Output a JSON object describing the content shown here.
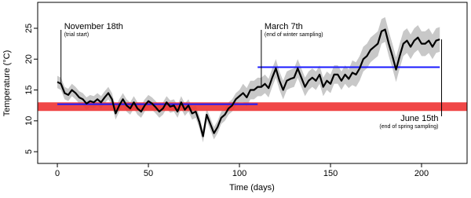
{
  "chart_data": {
    "type": "line",
    "xlabel": "Time (days)",
    "ylabel": "Temperature (°C)",
    "xlim": [
      -10.8,
      225
    ],
    "ylim": [
      3.1,
      29.2
    ],
    "xticks": [
      0,
      50,
      100,
      150,
      200
    ],
    "yticks": [
      5,
      10,
      15,
      20,
      25
    ],
    "x": [
      0,
      2,
      4,
      6,
      8,
      10,
      12,
      14,
      16,
      18,
      20,
      22,
      24,
      26,
      28,
      30,
      32,
      34,
      36,
      38,
      40,
      42,
      44,
      46,
      48,
      50,
      52,
      54,
      56,
      58,
      60,
      62,
      64,
      66,
      68,
      70,
      72,
      74,
      76,
      78,
      80,
      82,
      84,
      86,
      88,
      90,
      92,
      94,
      96,
      98,
      100,
      102,
      104,
      106,
      108,
      110,
      112,
      114,
      116,
      118,
      120,
      122,
      124,
      126,
      128,
      130,
      132,
      134,
      136,
      138,
      140,
      142,
      144,
      146,
      148,
      150,
      152,
      154,
      156,
      158,
      160,
      162,
      164,
      166,
      168,
      170,
      172,
      174,
      176,
      178,
      180,
      182,
      184,
      186,
      188,
      190,
      192,
      194,
      196,
      198,
      200,
      202,
      204,
      206,
      208,
      210
    ],
    "series": [
      {
        "color": "#000000",
        "values": [
          16.3,
          16,
          14.5,
          14.2,
          15,
          14.5,
          13.8,
          13.5,
          12.8,
          13.2,
          13,
          13.5,
          13,
          13.8,
          14.5,
          13.5,
          11.2,
          12.5,
          13.5,
          12.5,
          12,
          13,
          12,
          11.5,
          12.5,
          13.2,
          12.8,
          12.2,
          11.5,
          12,
          13,
          12.3,
          12.5,
          11.5,
          13,
          11.8,
          12.5,
          11.2,
          11.5,
          9.8,
          7.5,
          11,
          9.5,
          8,
          9,
          10.5,
          11,
          12,
          12.5,
          13.5,
          14,
          14.5,
          13.8,
          15,
          15,
          15.5,
          15.5,
          16,
          15.3,
          17,
          18.5,
          16.5,
          15,
          16.5,
          16.8,
          17,
          18.5,
          17,
          15.5,
          16.5,
          17,
          16.5,
          17.5,
          15.5,
          16.5,
          16,
          17.5,
          17.5,
          16.5,
          17.5,
          16.8,
          17.8,
          17.5,
          18.5,
          20,
          20.5,
          21.5,
          22,
          22.5,
          24.5,
          24.8,
          22.5,
          20.5,
          18.3,
          20.5,
          22.5,
          23,
          22,
          23,
          23.5,
          22.5,
          22.5,
          23,
          22,
          23,
          23.2
        ]
      }
    ],
    "band": {
      "color": "#c8c8c8",
      "lower": [
        15.3,
        15,
        13.5,
        13.2,
        14,
        13.5,
        12.8,
        12.5,
        11.8,
        12.2,
        12,
        12.5,
        12,
        12.8,
        13.5,
        12.5,
        10.2,
        11.5,
        12.5,
        11.5,
        11,
        12,
        11,
        10.5,
        11.5,
        12.2,
        11.8,
        11.2,
        10.5,
        11,
        12,
        11.3,
        11.5,
        10.5,
        12,
        10.8,
        11.5,
        10.2,
        10.5,
        8.8,
        6.5,
        10,
        8.5,
        7,
        8,
        9.5,
        10,
        11,
        11.5,
        12.5,
        13,
        13,
        12.3,
        13.5,
        13.5,
        14,
        14,
        14.5,
        13.8,
        15.5,
        17,
        15,
        13.5,
        15,
        15.3,
        15.5,
        17,
        15.5,
        14,
        15,
        15.5,
        15,
        16,
        14,
        15,
        14.5,
        16,
        16,
        15,
        16,
        15.3,
        15.8,
        15.5,
        16.5,
        18,
        18.5,
        19.5,
        20,
        20.5,
        22.5,
        22.8,
        20.5,
        18.5,
        16.3,
        18.5,
        20.5,
        21,
        20,
        21,
        21.5,
        20.5,
        20.5,
        21,
        20,
        21,
        21.2
      ],
      "upper": [
        17.3,
        17,
        15.5,
        15.2,
        16,
        15.5,
        14.8,
        14.5,
        13.8,
        14.2,
        14,
        14.5,
        14,
        14.8,
        15.5,
        14.5,
        12.2,
        13.5,
        14.5,
        13.5,
        13,
        14,
        13,
        12.5,
        13.5,
        14.2,
        13.8,
        13.2,
        12.5,
        13,
        14,
        13.3,
        13.5,
        12.5,
        14,
        12.8,
        13.5,
        12.2,
        12.5,
        10.8,
        8.5,
        12,
        10.5,
        9,
        10,
        11.5,
        12,
        13,
        13.5,
        14.5,
        15,
        16,
        15.3,
        16.5,
        16.5,
        17,
        17,
        17.5,
        16.8,
        18.5,
        20,
        18,
        16.5,
        18,
        18.3,
        18.5,
        20,
        18.5,
        17,
        18,
        18.5,
        18,
        19,
        17,
        18,
        17.5,
        19,
        19,
        18,
        19,
        18.3,
        19.8,
        19.5,
        20.5,
        22,
        22.5,
        23.5,
        24,
        24.5,
        26.5,
        26.8,
        24.5,
        22.5,
        20.3,
        22.5,
        24.5,
        25,
        24,
        25,
        25.5,
        24.5,
        24.5,
        25,
        24,
        25,
        25.2
      ]
    },
    "hband": {
      "color": "#ee3333",
      "y": [
        11.6,
        13.0
      ]
    },
    "hlines": [
      {
        "color": "#1a1aff",
        "y": 12.7,
        "x": [
          0,
          110
        ]
      },
      {
        "color": "#1a1aff",
        "y": 18.7,
        "x": [
          110,
          210
        ]
      }
    ],
    "annotations": [
      {
        "x": 2,
        "text": "November 18th",
        "subtext": "(trial start)"
      },
      {
        "x": 112,
        "text": "March 7th",
        "subtext": "(end of winter sampling)"
      },
      {
        "x": 211,
        "text": "June 15th",
        "subtext": "(end of spring sampling)"
      }
    ]
  }
}
